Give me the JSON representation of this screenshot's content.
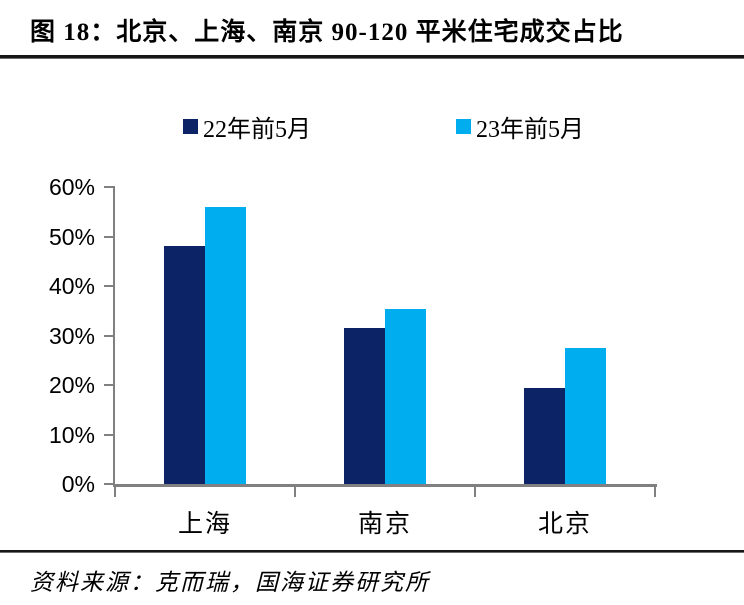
{
  "header": {
    "title": "图 18：北京、上海、南京 90-120 平米住宅成交占比"
  },
  "chart_data": {
    "type": "bar",
    "title": "北京、上海、南京 90-120 平米住宅成交占比",
    "categories": [
      "上海",
      "南京",
      "北京"
    ],
    "series": [
      {
        "name": "22年前5月",
        "color": "#0c2365",
        "values": [
          48.0,
          31.5,
          19.3
        ]
      },
      {
        "name": "23年前5月",
        "color": "#00aeef",
        "values": [
          56.0,
          35.3,
          27.5
        ]
      }
    ],
    "xlabel": "",
    "ylabel": "",
    "ylim": [
      0,
      60
    ],
    "ytick_step": 10,
    "ytick_labels": [
      "0%",
      "10%",
      "20%",
      "30%",
      "40%",
      "50%",
      "60%"
    ],
    "ytick_format": "percent",
    "legend_position": "top",
    "grid": false,
    "axis_color": "#808080",
    "text_color": "#000000"
  },
  "footer": {
    "source": "资料来源：克而瑞，国海证券研究所"
  }
}
